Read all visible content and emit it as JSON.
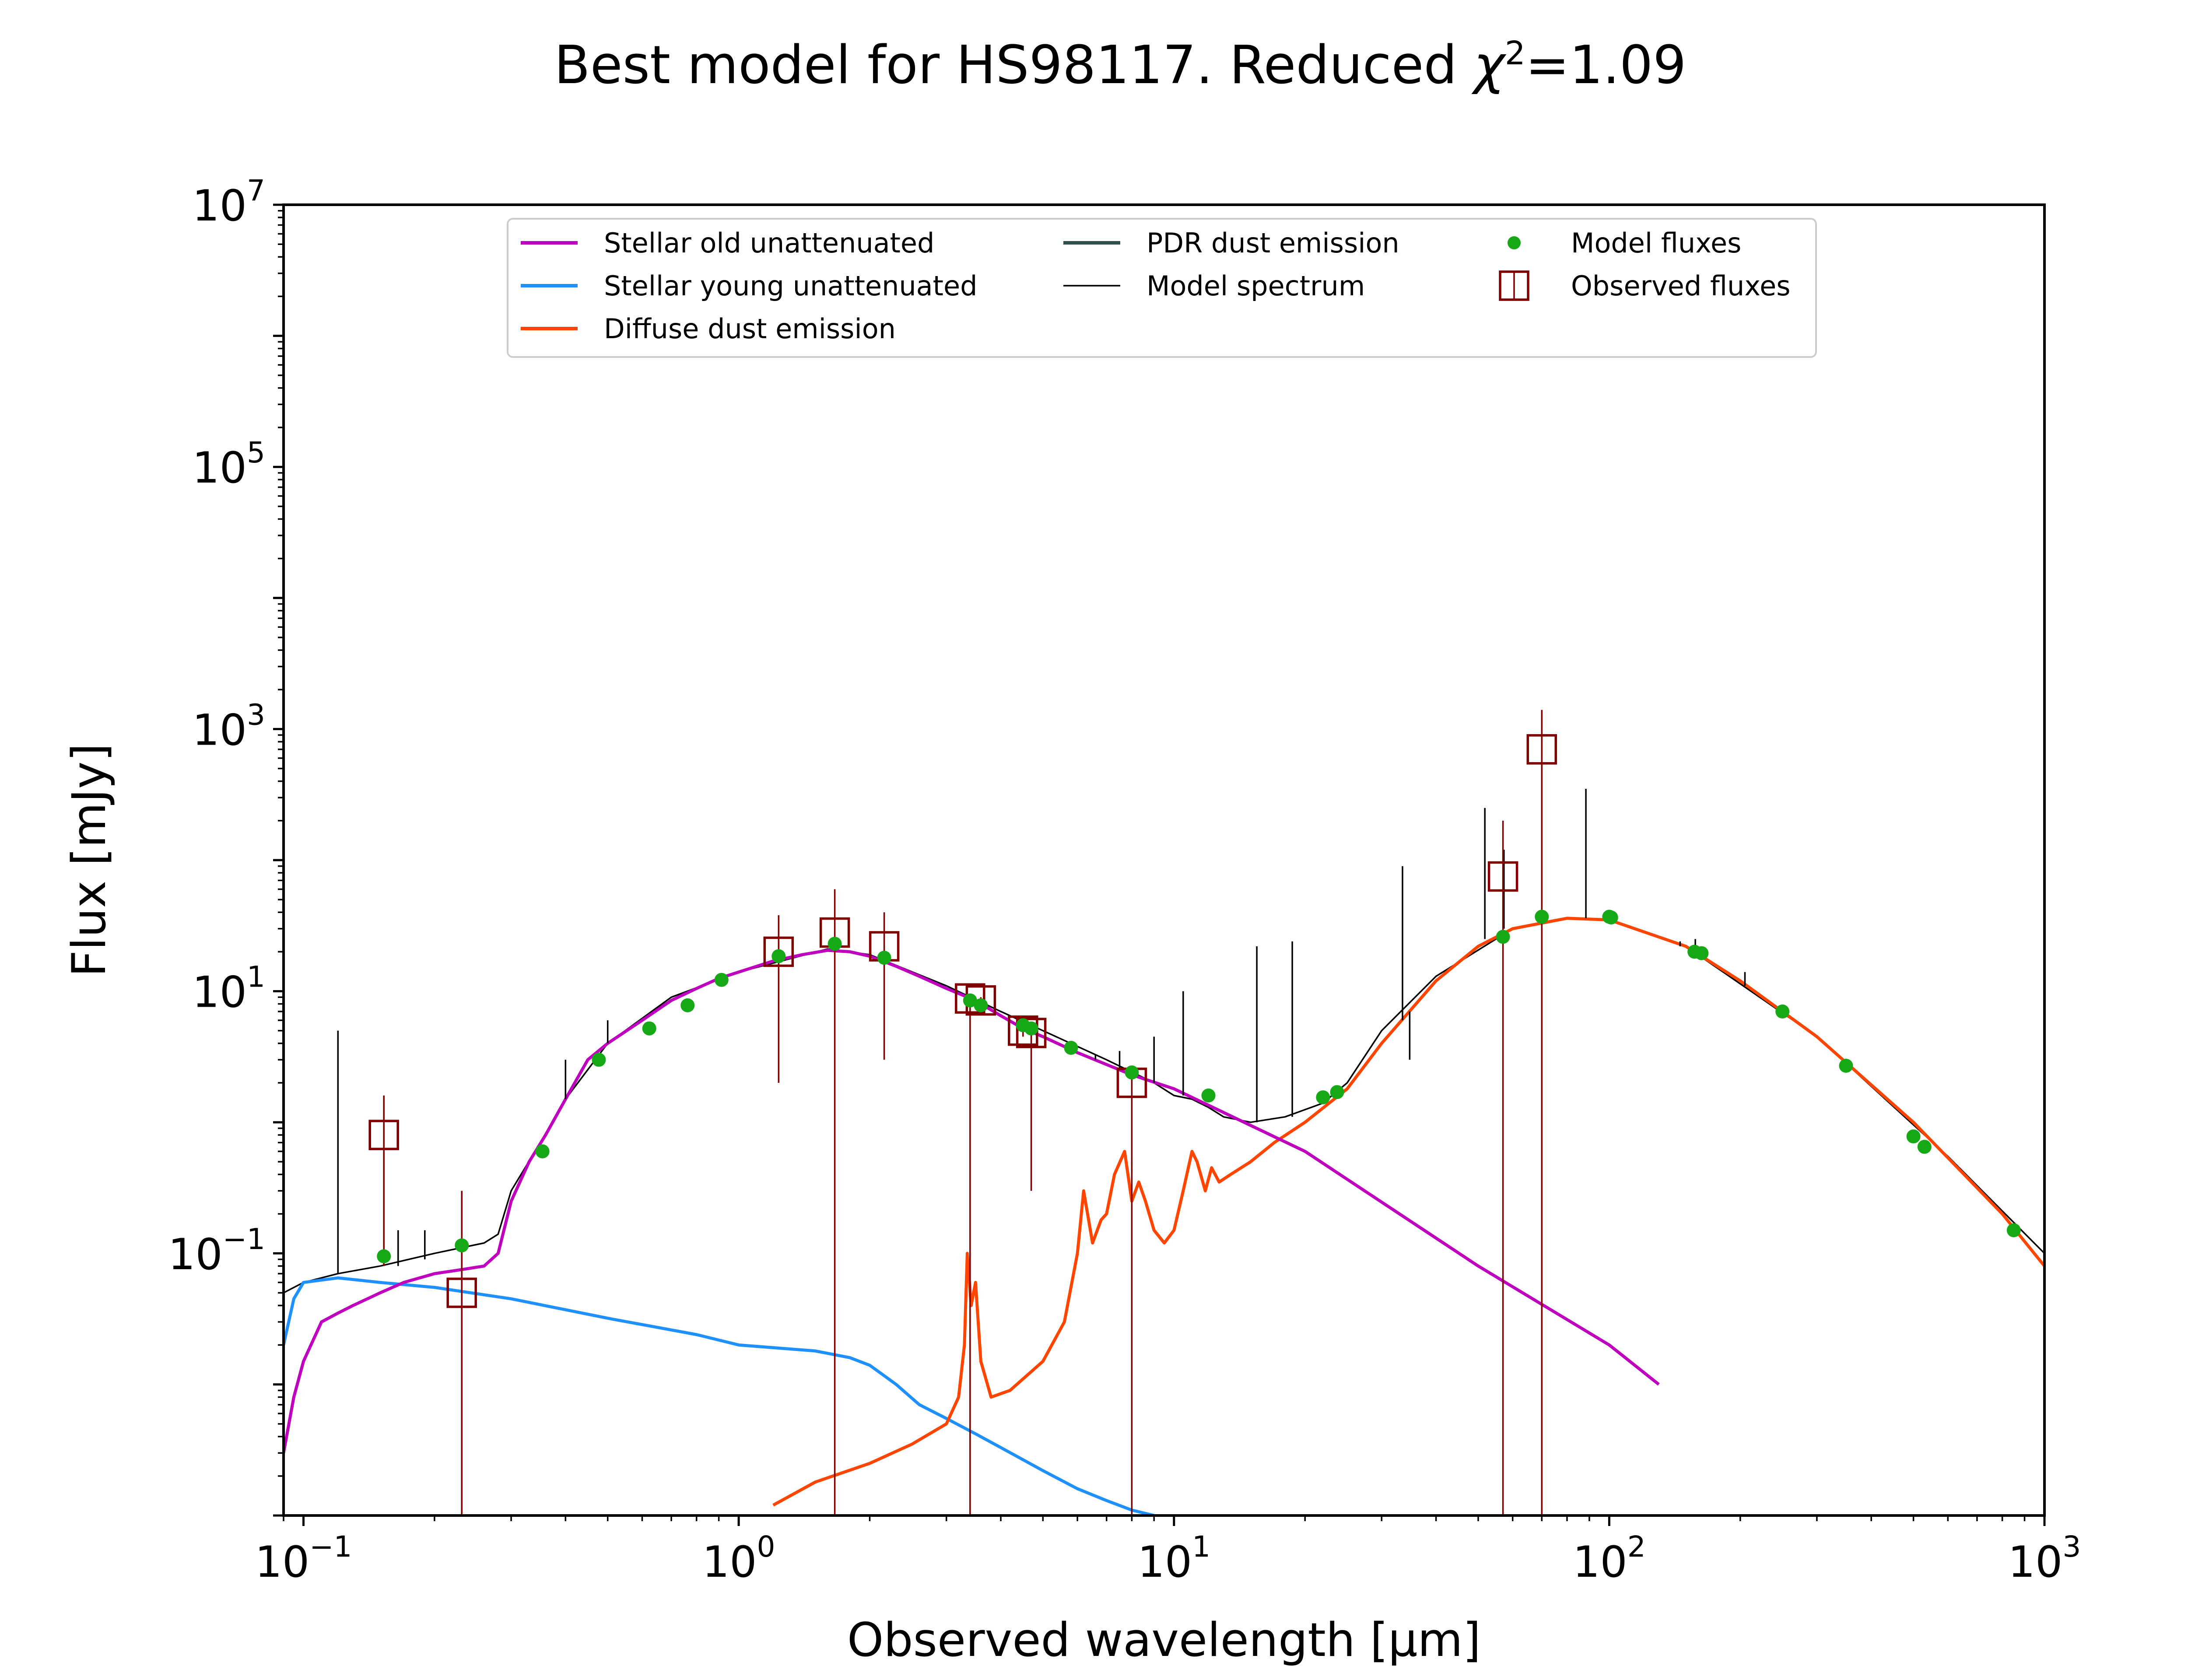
{
  "chart_data": {
    "type": "line",
    "title": "Best model for HS98117. Reduced χ²=1.09",
    "title_parts": {
      "prefix": "Best model for HS98117. Reduced ",
      "chi": "χ",
      "sup": "2",
      "suffix": "=1.09"
    },
    "xlabel": "Observed wavelength [μm]",
    "ylabel": "Flux [mJy]",
    "x_scale": "log",
    "y_scale": "log",
    "xlim": [
      0.09,
      1000
    ],
    "ylim": [
      0.001,
      10000000
    ],
    "x_ticks": [
      {
        "base": "10",
        "exp": "−1",
        "value": 0.1
      },
      {
        "base": "10",
        "exp": "0",
        "value": 1
      },
      {
        "base": "10",
        "exp": "1",
        "value": 10
      },
      {
        "base": "10",
        "exp": "2",
        "value": 100
      },
      {
        "base": "10",
        "exp": "3",
        "value": 1000
      }
    ],
    "y_ticks": [
      {
        "base": "10",
        "exp": "−1",
        "value": 0.1
      },
      {
        "base": "10",
        "exp": "1",
        "value": 10
      },
      {
        "base": "10",
        "exp": "3",
        "value": 1000
      },
      {
        "base": "10",
        "exp": "5",
        "value": 100000
      },
      {
        "base": "10",
        "exp": "7",
        "value": 10000000
      }
    ],
    "grid": false,
    "legend_position": "top",
    "colors": {
      "stellar_old": "#bf00bf",
      "stellar_young": "#1e90ff",
      "diffuse_dust": "#ff4500",
      "pdr_dust": "#2f4f4f",
      "model_spectrum": "#000000",
      "model_fluxes": "#17a817",
      "observed_fluxes": "#800000"
    },
    "legend": [
      {
        "key": "stellar_old",
        "label": "Stellar old unattenuated",
        "kind": "line"
      },
      {
        "key": "stellar_young",
        "label": "Stellar young unattenuated",
        "kind": "line"
      },
      {
        "key": "diffuse_dust",
        "label": "Diffuse dust emission",
        "kind": "line"
      },
      {
        "key": "pdr_dust",
        "label": "PDR dust emission",
        "kind": "line"
      },
      {
        "key": "model_spectrum",
        "label": "Model spectrum",
        "kind": "thin-line"
      },
      {
        "key": "model_fluxes",
        "label": "Model fluxes",
        "kind": "dot"
      },
      {
        "key": "observed_fluxes",
        "label": "Observed fluxes",
        "kind": "square"
      }
    ],
    "series": [
      {
        "key": "stellar_old",
        "x": [
          0.09,
          0.095,
          0.1,
          0.11,
          0.12,
          0.13,
          0.15,
          0.17,
          0.2,
          0.23,
          0.26,
          0.28,
          0.3,
          0.33,
          0.36,
          0.4,
          0.45,
          0.5,
          0.6,
          0.7,
          0.8,
          0.9,
          1.0,
          1.2,
          1.4,
          1.6,
          1.8,
          2.0,
          2.3,
          2.6,
          3.0,
          3.5,
          4.0,
          4.5,
          5.0,
          6.0,
          8.0,
          10,
          20,
          50,
          100,
          130
        ],
        "y": [
          0.003,
          0.008,
          0.015,
          0.03,
          0.035,
          0.04,
          0.05,
          0.06,
          0.07,
          0.075,
          0.08,
          0.1,
          0.25,
          0.5,
          0.8,
          1.5,
          3.0,
          4.0,
          6.0,
          8.5,
          10.5,
          12.5,
          14.0,
          17.0,
          19.0,
          20.5,
          20.0,
          18.5,
          15.5,
          13.0,
          10.5,
          8.5,
          6.5,
          5.2,
          4.5,
          3.4,
          2.3,
          1.8,
          0.6,
          0.08,
          0.02,
          0.01
        ]
      },
      {
        "key": "stellar_young",
        "x": [
          0.09,
          0.095,
          0.1,
          0.12,
          0.15,
          0.2,
          0.3,
          0.5,
          0.8,
          1.0,
          1.5,
          1.8,
          2.0,
          2.3,
          2.6,
          3.0,
          3.5,
          4.0,
          5.0,
          6.0,
          7.0,
          8.0,
          9.0
        ],
        "y": [
          0.02,
          0.045,
          0.06,
          0.065,
          0.06,
          0.055,
          0.045,
          0.032,
          0.024,
          0.02,
          0.018,
          0.016,
          0.014,
          0.01,
          0.007,
          0.0055,
          0.0042,
          0.0033,
          0.0022,
          0.0016,
          0.0013,
          0.0011,
          0.001
        ]
      },
      {
        "key": "diffuse_dust",
        "x": [
          1.2,
          1.5,
          2.0,
          2.5,
          3.0,
          3.2,
          3.3,
          3.35,
          3.42,
          3.5,
          3.6,
          3.8,
          4.2,
          5.0,
          5.6,
          6.0,
          6.2,
          6.5,
          6.8,
          7.0,
          7.3,
          7.7,
          8.0,
          8.3,
          8.6,
          9.0,
          9.5,
          10.0,
          10.5,
          11.0,
          11.3,
          11.8,
          12.2,
          12.7,
          13.5,
          15,
          17,
          20,
          25,
          30,
          40,
          50,
          60,
          80,
          100,
          150,
          200,
          300,
          500,
          800,
          1000
        ],
        "y": [
          0.0012,
          0.0018,
          0.0025,
          0.0035,
          0.005,
          0.008,
          0.02,
          0.1,
          0.04,
          0.06,
          0.015,
          0.008,
          0.009,
          0.015,
          0.03,
          0.1,
          0.3,
          0.12,
          0.18,
          0.2,
          0.4,
          0.6,
          0.25,
          0.35,
          0.25,
          0.15,
          0.12,
          0.15,
          0.3,
          0.6,
          0.5,
          0.3,
          0.45,
          0.35,
          0.4,
          0.5,
          0.7,
          1.0,
          1.8,
          4.0,
          12,
          22,
          30,
          36,
          35,
          22,
          12,
          4.5,
          1.0,
          0.2,
          0.08
        ]
      },
      {
        "key": "model_spectrum",
        "x": [
          0.09,
          0.1,
          0.12,
          0.15,
          0.2,
          0.26,
          0.28,
          0.3,
          0.35,
          0.4,
          0.5,
          0.7,
          1.0,
          1.6,
          2.0,
          3.0,
          4.0,
          5.0,
          7.0,
          9.0,
          10.0,
          11.0,
          12.0,
          13.0,
          15.0,
          18.0,
          22.0,
          25.0,
          30.0,
          40.0,
          60.0,
          80.0,
          100,
          150,
          300,
          600,
          1000
        ],
        "y": [
          0.05,
          0.06,
          0.07,
          0.08,
          0.1,
          0.12,
          0.14,
          0.3,
          0.7,
          1.5,
          4.0,
          9.0,
          14.0,
          21.0,
          19.0,
          11.0,
          7.0,
          5.0,
          3.0,
          2.0,
          1.6,
          1.5,
          1.3,
          1.1,
          1.0,
          1.1,
          1.4,
          2.0,
          5.0,
          13.0,
          30.0,
          36.0,
          35.0,
          22.0,
          4.5,
          0.55,
          0.1
        ]
      }
    ],
    "emission_lines": [
      {
        "x": 0.12,
        "top": 5.0,
        "base": 0.07
      },
      {
        "x": 0.165,
        "top": 0.15,
        "base": 0.08
      },
      {
        "x": 0.19,
        "top": 0.15,
        "base": 0.09
      },
      {
        "x": 0.4,
        "top": 3.0,
        "base": 1.5
      },
      {
        "x": 0.5,
        "top": 6.0,
        "base": 4.0
      },
      {
        "x": 6.6,
        "top": 3.3,
        "base": 3.0
      },
      {
        "x": 7.5,
        "top": 3.5,
        "base": 2.6
      },
      {
        "x": 9.0,
        "top": 4.5,
        "base": 2.0
      },
      {
        "x": 10.5,
        "top": 10.0,
        "base": 1.6
      },
      {
        "x": 15.5,
        "top": 22.0,
        "base": 1.0
      },
      {
        "x": 18.7,
        "top": 24.0,
        "base": 1.1
      },
      {
        "x": 33.5,
        "top": 90.0,
        "base": 6.0
      },
      {
        "x": 34.8,
        "top": 3.0,
        "base": 7.0
      },
      {
        "x": 51.8,
        "top": 250.0,
        "base": 25.0
      },
      {
        "x": 57.3,
        "top": 120.0,
        "base": 30.0
      },
      {
        "x": 88.4,
        "top": 350.0,
        "base": 36.0
      },
      {
        "x": 145.5,
        "top": 22.0,
        "base": 24.0
      },
      {
        "x": 157.7,
        "top": 25.0,
        "base": 20.0
      },
      {
        "x": 205,
        "top": 14.0,
        "base": 11.0
      }
    ],
    "model_fluxes": {
      "x": [
        0.153,
        0.231,
        0.354,
        0.477,
        0.623,
        0.763,
        0.913,
        1.235,
        1.662,
        2.159,
        3.4,
        3.6,
        4.5,
        4.7,
        5.8,
        8.0,
        12.0,
        22.0,
        23.7,
        57.0,
        70.0,
        100.0,
        101.0,
        157.0,
        163.0,
        250.0,
        350.0,
        500.0,
        530.0,
        850.0
      ],
      "y": [
        0.095,
        0.115,
        0.6,
        3.0,
        5.2,
        7.8,
        12.2,
        18.5,
        23.0,
        18.0,
        8.5,
        7.8,
        5.5,
        5.2,
        3.7,
        2.4,
        1.6,
        1.55,
        1.7,
        26.0,
        37.0,
        37.0,
        36.5,
        20.0,
        19.5,
        7.0,
        2.7,
        0.78,
        0.65,
        0.15
      ]
    },
    "observed_fluxes": {
      "x": [
        0.153,
        0.231,
        1.235,
        1.662,
        2.159,
        3.4,
        3.6,
        4.5,
        4.7,
        8.0,
        57.0,
        70.0
      ],
      "y": [
        0.8,
        0.05,
        20.0,
        28.0,
        22.0,
        8.8,
        8.5,
        5.0,
        4.8,
        2.0,
        75.0,
        700.0
      ],
      "err_lo": [
        0.08,
        0.001,
        2.0,
        0.001,
        3.0,
        0.001,
        7.0,
        4.5,
        0.3,
        0.001,
        0.001,
        0.001
      ],
      "err_hi": [
        1.6,
        0.3,
        38.0,
        60.0,
        40.0,
        9.5,
        9.0,
        5.5,
        5.3,
        2.2,
        200.0,
        1400.0
      ]
    }
  }
}
